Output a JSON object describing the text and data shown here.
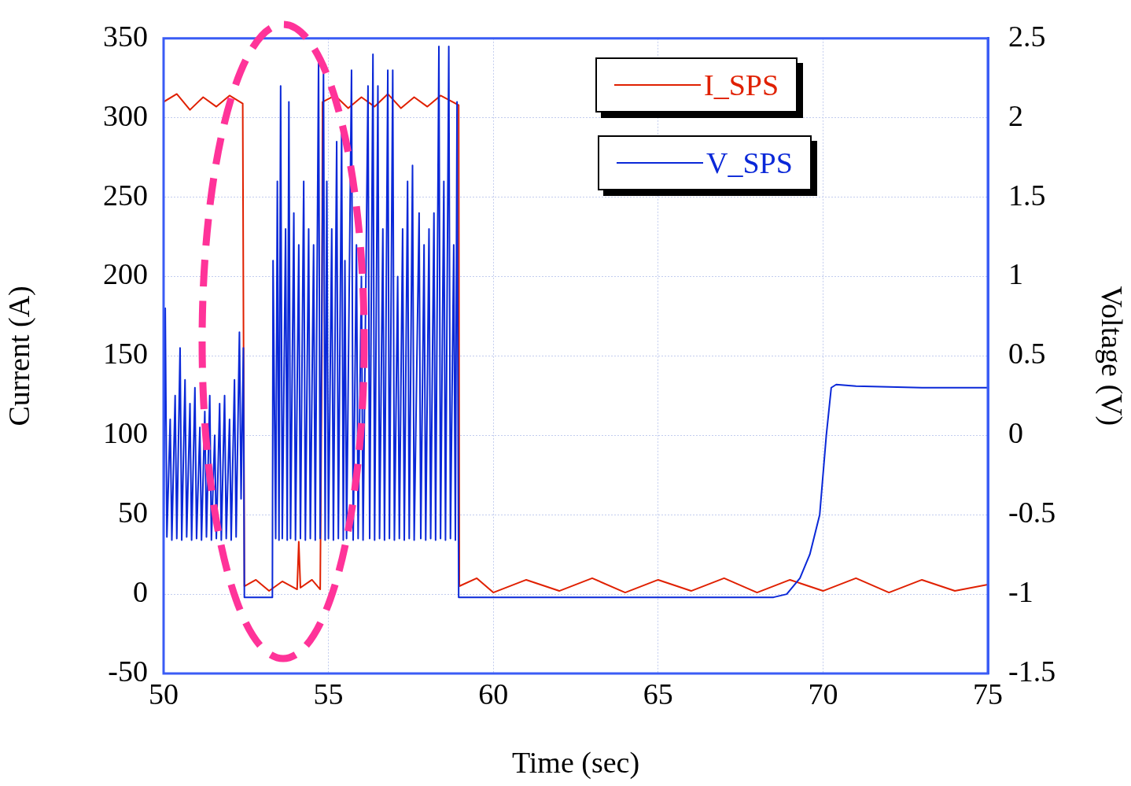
{
  "chart_data": {
    "type": "line",
    "xlabel": "Time (sec)",
    "ylabel": "Current (A)",
    "y2label": "Voltage (V)",
    "xlim": [
      50,
      75
    ],
    "xticks": [
      50,
      55,
      60,
      65,
      70,
      75
    ],
    "ylim": [
      -50,
      350
    ],
    "yticks": [
      -50,
      0,
      50,
      100,
      150,
      200,
      250,
      300,
      350
    ],
    "y2lim": [
      -1.5,
      2.5
    ],
    "y2ticks": [
      -1.5,
      -1,
      -0.5,
      0,
      0.5,
      1,
      1.5,
      2,
      2.5
    ],
    "grid": true,
    "legend": "top right",
    "series": [
      {
        "name": "I_SPS",
        "color": "#e02000",
        "x": [
          50,
          50.4,
          50.8,
          51.2,
          51.6,
          52.0,
          52.4,
          52.45,
          52.8,
          53.2,
          53.6,
          54.05,
          54.1,
          54.15,
          54.5,
          54.75,
          54.8,
          54.82,
          55.2,
          55.6,
          56.0,
          56.4,
          56.8,
          57.2,
          57.6,
          58.0,
          58.4,
          58.95,
          58.97,
          59.5,
          60,
          61,
          62,
          63,
          64,
          65,
          66,
          67,
          68,
          69,
          70,
          71,
          72,
          73,
          74,
          75
        ],
        "values": [
          310,
          315,
          305,
          313,
          307,
          314,
          309,
          5,
          9,
          2,
          8,
          3,
          33,
          4,
          9,
          3,
          150,
          310,
          314,
          306,
          313,
          307,
          315,
          306,
          313,
          307,
          314,
          308,
          5,
          10,
          1,
          9,
          2,
          10,
          1,
          9,
          2,
          10,
          1,
          9,
          2,
          10,
          1,
          9,
          2,
          6
        ]
      },
      {
        "name": "V_SPS",
        "color": "#0a28d8",
        "axis": "y2",
        "x": [
          50.0,
          50.05,
          50.1,
          50.2,
          50.25,
          50.35,
          50.4,
          50.5,
          50.55,
          50.65,
          50.7,
          50.8,
          50.85,
          50.95,
          51.0,
          51.1,
          51.15,
          51.25,
          51.3,
          51.4,
          51.45,
          51.55,
          51.6,
          51.7,
          51.75,
          51.85,
          51.9,
          52.0,
          52.05,
          52.15,
          52.2,
          52.3,
          52.35,
          52.42,
          52.45,
          53.3,
          53.32,
          53.4,
          53.45,
          53.5,
          53.55,
          53.6,
          53.7,
          53.75,
          53.8,
          53.85,
          53.95,
          54.0,
          54.1,
          54.15,
          54.25,
          54.3,
          54.4,
          54.45,
          54.55,
          54.6,
          54.7,
          54.75,
          54.85,
          54.9,
          54.95,
          55.0,
          55.1,
          55.15,
          55.25,
          55.3,
          55.4,
          55.45,
          55.5,
          55.55,
          55.7,
          55.75,
          55.85,
          55.9,
          56.0,
          56.05,
          56.2,
          56.25,
          56.35,
          56.4,
          56.5,
          56.55,
          56.65,
          56.7,
          56.8,
          56.85,
          56.95,
          57.0,
          57.1,
          57.15,
          57.25,
          57.3,
          57.4,
          57.45,
          57.55,
          57.6,
          57.75,
          57.8,
          57.9,
          57.95,
          58.05,
          58.1,
          58.2,
          58.25,
          58.35,
          58.4,
          58.5,
          58.55,
          58.65,
          58.7,
          58.8,
          58.85,
          58.9,
          58.95,
          68.5,
          68.9,
          69.3,
          69.6,
          69.9,
          70.1,
          70.25,
          70.4,
          71.0,
          73,
          75
        ],
        "values": [
          -0.65,
          0.8,
          -0.64,
          0.1,
          -0.66,
          0.25,
          -0.65,
          0.55,
          -0.66,
          0.35,
          -0.64,
          0.2,
          -0.66,
          0.3,
          -0.65,
          0.05,
          -0.66,
          0.15,
          -0.64,
          0.25,
          -0.66,
          0.0,
          -0.65,
          0.2,
          -0.66,
          0.25,
          -0.65,
          0.1,
          -0.66,
          0.35,
          -0.64,
          0.65,
          -0.4,
          0.55,
          -1.02,
          -1.02,
          1.1,
          -0.65,
          1.6,
          -0.66,
          2.2,
          -0.65,
          1.3,
          -0.66,
          2.1,
          -0.65,
          1.4,
          -0.66,
          1.2,
          -0.65,
          1.6,
          -0.66,
          1.3,
          -0.65,
          1.2,
          -0.66,
          2.35,
          -0.65,
          2.3,
          -0.66,
          1.6,
          -0.65,
          1.3,
          -0.66,
          1.85,
          -0.65,
          1.9,
          -0.66,
          1.1,
          -0.65,
          2.3,
          -0.66,
          1.2,
          -0.65,
          1.0,
          -0.66,
          2.2,
          -0.65,
          2.4,
          -0.66,
          2.2,
          -0.65,
          1.3,
          -0.66,
          2.3,
          -0.65,
          2.3,
          -0.66,
          1.0,
          -0.65,
          1.3,
          -0.66,
          1.6,
          -0.65,
          1.7,
          -0.66,
          1.4,
          -0.65,
          1.2,
          -0.66,
          1.3,
          -0.65,
          1.4,
          -0.66,
          2.45,
          -0.65,
          1.6,
          -0.66,
          2.45,
          -0.65,
          1.2,
          -0.66,
          2.1,
          -1.02,
          -1.02,
          -1.0,
          -0.9,
          -0.75,
          -0.5,
          0.0,
          0.3,
          0.32,
          0.31,
          0.3,
          0.3
        ]
      }
    ]
  }
}
